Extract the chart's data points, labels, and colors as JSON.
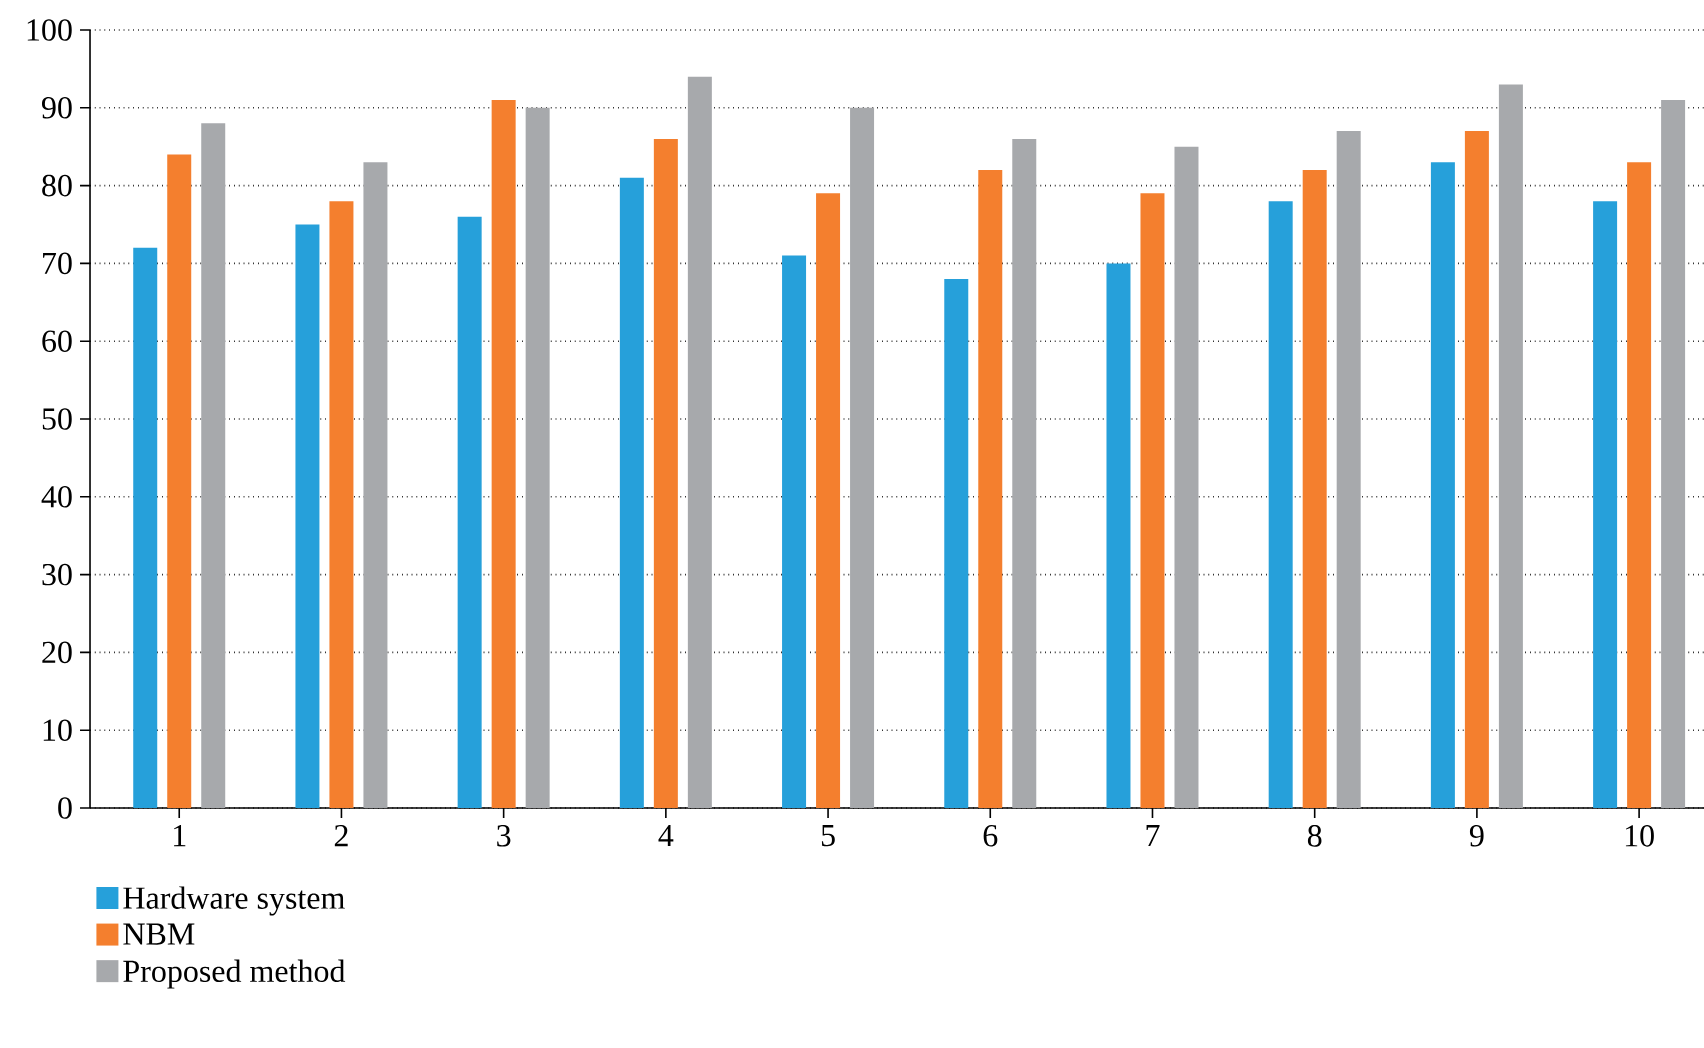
{
  "chart_data": {
    "type": "bar",
    "categories": [
      "1",
      "2",
      "3",
      "4",
      "5",
      "6",
      "7",
      "8",
      "9",
      "10"
    ],
    "series": [
      {
        "name": "Hardware system",
        "color": "#26a0da",
        "values": [
          72,
          75,
          76,
          81,
          71,
          68,
          70,
          78,
          83,
          78
        ]
      },
      {
        "name": "NBM",
        "color": "#f47f2e",
        "values": [
          84,
          78,
          91,
          86,
          79,
          82,
          79,
          82,
          87,
          83
        ]
      },
      {
        "name": "Proposed method",
        "color": "#a7a9ac",
        "values": [
          88,
          83,
          90,
          94,
          90,
          86,
          85,
          87,
          93,
          91
        ]
      }
    ],
    "ylim": [
      0,
      100
    ],
    "yticks": [
      0,
      10,
      20,
      30,
      40,
      50,
      60,
      70,
      80,
      90,
      100
    ],
    "grid": "y",
    "legend": "bottom left"
  }
}
